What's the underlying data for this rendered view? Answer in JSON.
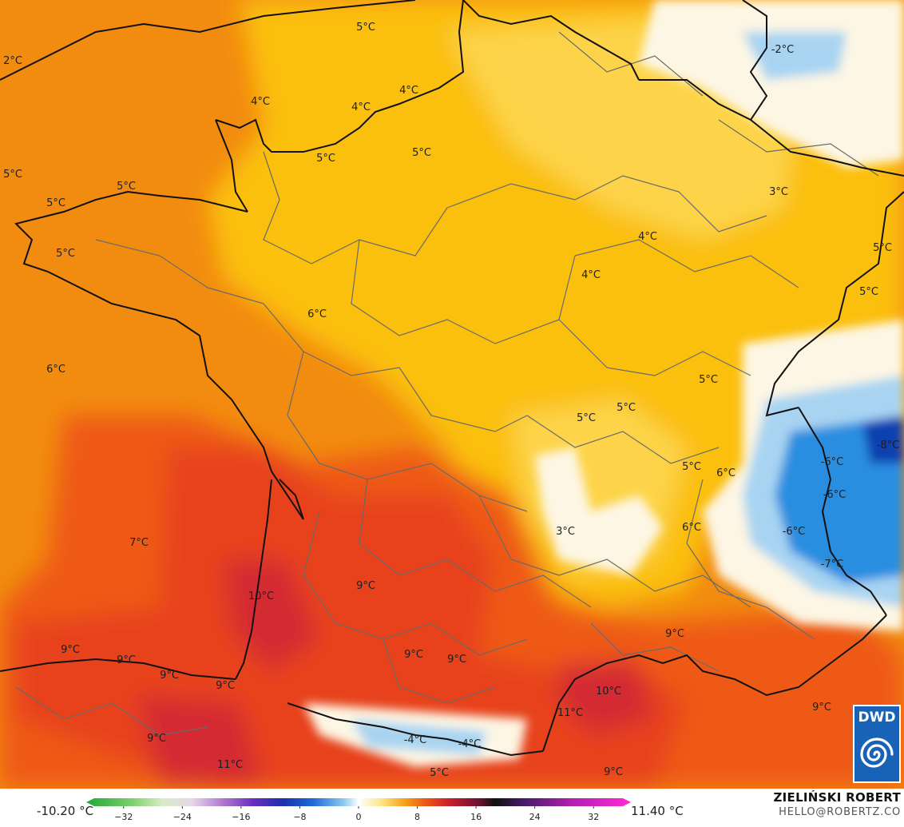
{
  "map": {
    "colors": {
      "sea_west": "#f28c10",
      "land_north": "#fbbf0e",
      "land_north_light": "#fdd44a",
      "southwest_hot": "#ee5a16",
      "south_hot": "#e7421c",
      "hot_core": "#d42a32",
      "cold_white": "#fdf6e4",
      "cold_light_blue": "#a8d4f2",
      "cold_blue": "#2b8ee0",
      "cold_dark_blue": "#0f3fb0",
      "border_country": "#111111",
      "border_region": "#6a6a6a"
    },
    "labels": [
      {
        "id": "l01",
        "text": "5°C"
      },
      {
        "id": "l02",
        "text": "2°C"
      },
      {
        "id": "l03",
        "text": "-2°C"
      },
      {
        "id": "l04",
        "text": "4°C"
      },
      {
        "id": "l05",
        "text": "4°C"
      },
      {
        "id": "l06",
        "text": "4°C"
      },
      {
        "id": "l07",
        "text": "5°C"
      },
      {
        "id": "l08",
        "text": "5°C"
      },
      {
        "id": "l09",
        "text": "5°C"
      },
      {
        "id": "l10",
        "text": "5°C"
      },
      {
        "id": "l11",
        "text": "5°C"
      },
      {
        "id": "l12",
        "text": "5°C"
      },
      {
        "id": "l13",
        "text": "3°C"
      },
      {
        "id": "l14",
        "text": "4°C"
      },
      {
        "id": "l15",
        "text": "5°C"
      },
      {
        "id": "l16",
        "text": "4°C"
      },
      {
        "id": "l17",
        "text": "5°C"
      },
      {
        "id": "l18",
        "text": "6°C"
      },
      {
        "id": "l19",
        "text": "6°C"
      },
      {
        "id": "l20",
        "text": "5°C"
      },
      {
        "id": "l21",
        "text": "5°C"
      },
      {
        "id": "l22",
        "text": "5°C"
      },
      {
        "id": "l23",
        "text": "-8°C"
      },
      {
        "id": "l24",
        "text": "5°C"
      },
      {
        "id": "l25",
        "text": "6°C"
      },
      {
        "id": "l26",
        "text": "-6°C"
      },
      {
        "id": "l27",
        "text": "-6°C"
      },
      {
        "id": "l28",
        "text": "3°C"
      },
      {
        "id": "l29",
        "text": "6°C"
      },
      {
        "id": "l30",
        "text": "-6°C"
      },
      {
        "id": "l31",
        "text": "7°C"
      },
      {
        "id": "l32",
        "text": "-7°C"
      },
      {
        "id": "l33",
        "text": "10°C"
      },
      {
        "id": "l34",
        "text": "9°C"
      },
      {
        "id": "l35",
        "text": "9°C"
      },
      {
        "id": "l36",
        "text": "9°C"
      },
      {
        "id": "l37",
        "text": "9°C"
      },
      {
        "id": "l38",
        "text": "9°C"
      },
      {
        "id": "l39",
        "text": "9°C"
      },
      {
        "id": "l40",
        "text": "9°C"
      },
      {
        "id": "l41",
        "text": "9°C"
      },
      {
        "id": "l42",
        "text": "10°C"
      },
      {
        "id": "l43",
        "text": "11°C"
      },
      {
        "id": "l44",
        "text": "9°C"
      },
      {
        "id": "l45",
        "text": "9°C"
      },
      {
        "id": "l46",
        "text": "-4°C"
      },
      {
        "id": "l47",
        "text": "-4°C"
      },
      {
        "id": "l48",
        "text": "11°C"
      },
      {
        "id": "l49",
        "text": "5°C"
      },
      {
        "id": "l50",
        "text": "9°C"
      }
    ]
  },
  "legend": {
    "min_label": "-10.20 °C",
    "max_label": "11.40 °C",
    "ticks": [
      "−32",
      "−24",
      "−16",
      "−8",
      "0",
      "8",
      "16",
      "24",
      "32"
    ],
    "tick_values": [
      -32,
      -24,
      -16,
      -8,
      0,
      8,
      16,
      24,
      32
    ],
    "range": [
      -36,
      36
    ],
    "stops": [
      {
        "value": -36,
        "color": "#1fa83a"
      },
      {
        "value": -30,
        "color": "#7ccf6a"
      },
      {
        "value": -26,
        "color": "#d6ecc4"
      },
      {
        "value": -22,
        "color": "#e6d6ea"
      },
      {
        "value": -18,
        "color": "#b07ad0"
      },
      {
        "value": -14,
        "color": "#6a2fc0"
      },
      {
        "value": -10,
        "color": "#1a2fb0"
      },
      {
        "value": -6,
        "color": "#1e6ad8"
      },
      {
        "value": -2,
        "color": "#8cc8f0"
      },
      {
        "value": 0,
        "color": "#ffffff"
      },
      {
        "value": 3,
        "color": "#fde68a"
      },
      {
        "value": 6,
        "color": "#f7a21a"
      },
      {
        "value": 9,
        "color": "#ee5416"
      },
      {
        "value": 12,
        "color": "#c8202e"
      },
      {
        "value": 16,
        "color": "#6a1030"
      },
      {
        "value": 18,
        "color": "#111111"
      },
      {
        "value": 22,
        "color": "#4a1a6a"
      },
      {
        "value": 28,
        "color": "#b01fb0"
      },
      {
        "value": 36,
        "color": "#ff2ad8"
      }
    ]
  },
  "logo": {
    "text": "DWD"
  },
  "credit": {
    "name": "ZIELIŃSKI ROBERT",
    "email": "HELLO@ROBERTZ.CO"
  }
}
